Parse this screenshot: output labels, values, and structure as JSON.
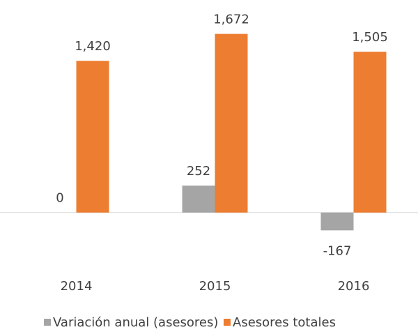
{
  "chart_data": {
    "type": "bar",
    "categories": [
      "2014",
      "2015",
      "2016"
    ],
    "series": [
      {
        "name": "Variación anual (asesores)",
        "color": "#a5a5a5",
        "values": [
          0,
          252,
          -167
        ]
      },
      {
        "name": "Asesores totales",
        "color": "#ed7d31",
        "values": [
          1420,
          1672,
          1505
        ],
        "value_labels": [
          "1,420",
          "1,672",
          "1,505"
        ]
      }
    ],
    "ylim": [
      -400,
      1800
    ]
  }
}
